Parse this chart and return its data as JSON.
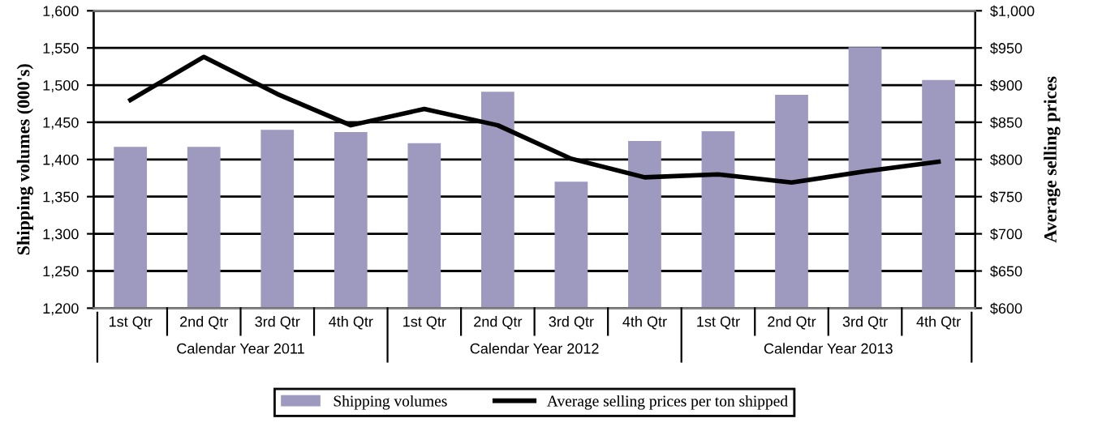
{
  "chart_data": {
    "type": "bar",
    "categories": [
      "1st Qtr",
      "2nd Qtr",
      "3rd Qtr",
      "4th Qtr",
      "1st Qtr",
      "2nd Qtr",
      "3rd Qtr",
      "4th Qtr",
      "1st Qtr",
      "2nd Qtr",
      "3rd Qtr",
      "4th Qtr"
    ],
    "series": [
      {
        "name": "Shipping volumes",
        "color": "#9e99bf",
        "values": [
          1417,
          1417,
          1440,
          1437,
          1422,
          1491,
          1370,
          1425,
          1438,
          1487,
          1551,
          1507
        ]
      },
      {
        "name": "Average selling prices per ton shipped",
        "type": "line",
        "axis": "y2",
        "color": "#000000",
        "values": [
          880,
          938,
          888,
          846,
          868,
          846,
          801,
          776,
          780,
          769,
          784,
          797
        ]
      }
    ],
    "ylabel": "Shipping volumes (000's)",
    "y2label": "Average selling prices",
    "ylim": [
      1200,
      1600
    ],
    "yticks": [
      {
        "value": 1200,
        "label": "1,200"
      },
      {
        "value": 1250,
        "label": "1,250"
      },
      {
        "value": 1300,
        "label": "1,300"
      },
      {
        "value": 1350,
        "label": "1,350"
      },
      {
        "value": 1400,
        "label": "1,400"
      },
      {
        "value": 1450,
        "label": "1,450"
      },
      {
        "value": 1500,
        "label": "1,500"
      },
      {
        "value": 1550,
        "label": "1,550"
      },
      {
        "value": 1600,
        "label": "1,600"
      }
    ],
    "y2lim": [
      600,
      1000
    ],
    "y2ticks": [
      {
        "value": 600,
        "label": "$600"
      },
      {
        "value": 650,
        "label": "$650"
      },
      {
        "value": 700,
        "label": "$700"
      },
      {
        "value": 750,
        "label": "$750"
      },
      {
        "value": 800,
        "label": "$800"
      },
      {
        "value": 850,
        "label": "$850"
      },
      {
        "value": 900,
        "label": "$900"
      },
      {
        "value": 950,
        "label": "$950"
      },
      {
        "value": 1000,
        "label": "$1,000"
      }
    ],
    "annotations": [
      "Calendar Year 2011",
      "Calendar Year 2012",
      "Calendar Year 2013"
    ],
    "grid": "y",
    "legend": "bottom",
    "marker": "none",
    "line_style": "solid"
  }
}
